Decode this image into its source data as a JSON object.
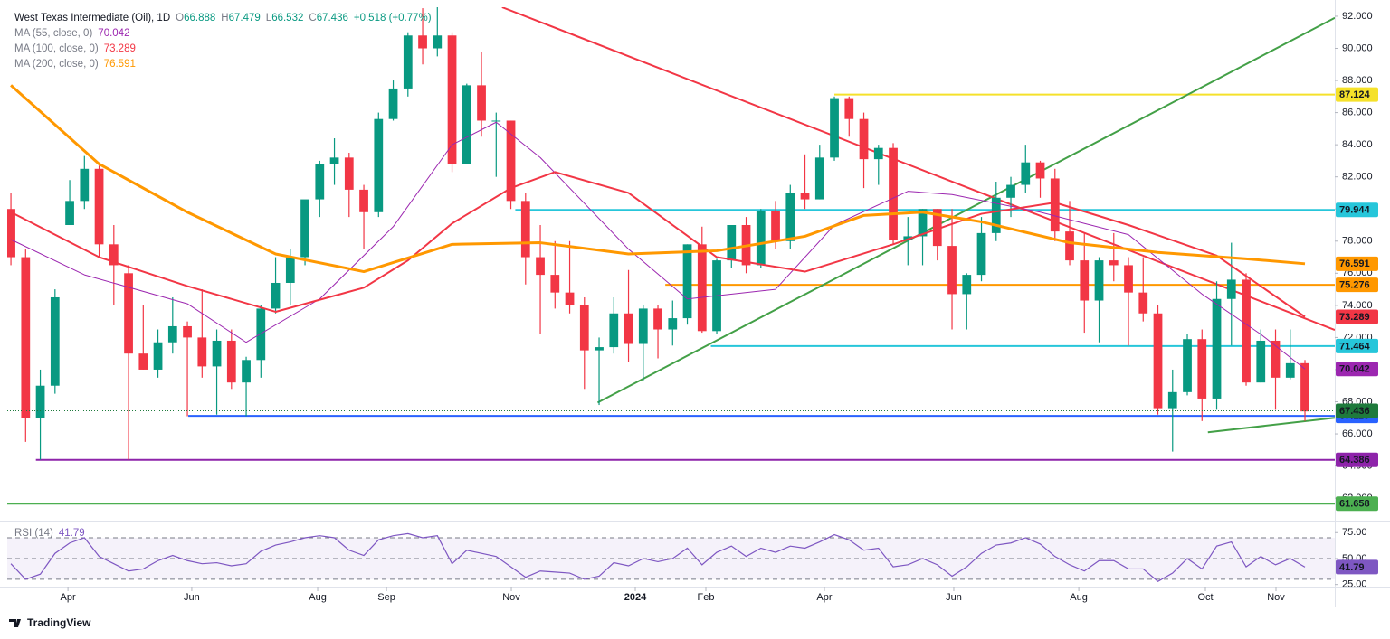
{
  "brand": "TradingView",
  "chart_data": [
    {
      "type": "candlestick",
      "title": "West Texas Intermediate (Oil), 1D",
      "ohlc": [
        {
          "label": "O",
          "value": 66.888
        },
        {
          "label": "H",
          "value": 67.479
        },
        {
          "label": "L",
          "value": 66.532
        },
        {
          "label": "C",
          "value": 67.436
        }
      ],
      "change": "+0.518 (+0.77%)",
      "up_color": "#089981",
      "down_color": "#f23645",
      "xlim": [
        -0.25,
        90.03
      ],
      "xticks": [
        {
          "value": 3.88,
          "label": "Apr"
        },
        {
          "value": 12.3,
          "label": "Jun"
        },
        {
          "value": 20.86,
          "label": "Aug"
        },
        {
          "value": 25.54,
          "label": "Sep"
        },
        {
          "value": 34.03,
          "label": "Nov"
        },
        {
          "value": 42.46,
          "label": "2024",
          "bold": true
        },
        {
          "value": 47.26,
          "label": "Feb"
        },
        {
          "value": 55.32,
          "label": "Apr"
        },
        {
          "value": 64.12,
          "label": "Jun"
        },
        {
          "value": 72.62,
          "label": "Aug"
        },
        {
          "value": 81.23,
          "label": "Oct"
        },
        {
          "value": 86.03,
          "label": "Nov"
        }
      ],
      "ylim": [
        60.77,
        92.56
      ],
      "yticks": [
        {
          "value": 62,
          "label": "62.000"
        },
        {
          "value": 64,
          "label": "64.000"
        },
        {
          "value": 66,
          "label": "66.000"
        },
        {
          "value": 68,
          "label": "68.000"
        },
        {
          "value": 70,
          "label": "70.000"
        },
        {
          "value": 72,
          "label": "72.000"
        },
        {
          "value": 74,
          "label": "74.000"
        },
        {
          "value": 76,
          "label": "76.000"
        },
        {
          "value": 78,
          "label": "78.000"
        },
        {
          "value": 80,
          "label": "80.000"
        },
        {
          "value": 82,
          "label": "82.000"
        },
        {
          "value": 84,
          "label": "84.000"
        },
        {
          "value": 86,
          "label": "86.000"
        },
        {
          "value": 88,
          "label": "88.000"
        },
        {
          "value": 90,
          "label": "90.000"
        },
        {
          "value": 92,
          "label": "92.000"
        }
      ],
      "candles": {
        "open": [
          80,
          77,
          67,
          69,
          79,
          80.5,
          82.5,
          77.8,
          76,
          71,
          70,
          71.7,
          72.7,
          72,
          70.2,
          71.8,
          69.2,
          70.6,
          73.8,
          75.4,
          77,
          80.6,
          82.8,
          83.2,
          81.2,
          79.8,
          85.6,
          87.5,
          90.8,
          90,
          90.8,
          82.8,
          87.7,
          85.5,
          85.5,
          80.5,
          77,
          75.9,
          74.8,
          74,
          71.2,
          71.4,
          73.5,
          71.6,
          73.8,
          72.5,
          73.2,
          77.8,
          72.4,
          76.8,
          79,
          76.5,
          79.9,
          78,
          81,
          80.6,
          83.2,
          86.9,
          85.6,
          83.1,
          83.8,
          78.1,
          78.3,
          80,
          77.7,
          74.7,
          75.9,
          78.5,
          80.7,
          81.5,
          82.9,
          81.9,
          78.6,
          76.8,
          74.3,
          76.8,
          76.5,
          74.8,
          73.5,
          67.6,
          68.6,
          71.9,
          68.2,
          74.4,
          75.6,
          69.2,
          71.8,
          69.5,
          70.4
        ],
        "high": [
          81,
          77.5,
          70,
          75,
          81.8,
          83.3,
          82.7,
          79,
          76.5,
          74,
          72.5,
          74.5,
          73,
          75,
          72.5,
          72.5,
          70.8,
          74,
          77,
          77.5,
          80.5,
          83,
          84.4,
          83.5,
          81.5,
          86,
          88,
          91,
          92.5,
          93.7,
          91,
          87.8,
          89.8,
          86,
          85.5,
          81,
          79,
          78,
          78,
          74.5,
          72,
          74.5,
          76.2,
          74,
          74,
          74.3,
          77.8,
          78.9,
          76.9,
          79,
          79.5,
          80,
          80.5,
          81.5,
          83.4,
          84,
          87,
          87,
          86,
          84,
          84.1,
          79.5,
          80,
          80,
          80,
          76,
          79.5,
          81.7,
          82,
          84,
          83,
          82.5,
          80.5,
          78.5,
          77,
          78.5,
          77,
          77,
          74,
          70,
          72.2,
          72.5,
          75.5,
          77.9,
          76,
          72.5,
          72.5,
          72.5,
          70.6
        ],
        "low": [
          76.5,
          65.5,
          64.4,
          68.5,
          79,
          80,
          77,
          74,
          64.4,
          70,
          69.5,
          71,
          67.1,
          69.5,
          67.2,
          68.8,
          67.1,
          69.5,
          73.5,
          74,
          76.5,
          79.5,
          81.5,
          79.5,
          77.5,
          79.5,
          85.5,
          87,
          89,
          89.5,
          82.3,
          82.8,
          84.5,
          82,
          80,
          75.3,
          72.2,
          73.8,
          73.5,
          68.8,
          67.8,
          71,
          70.5,
          69.3,
          70.7,
          71.5,
          72.8,
          72.3,
          72.2,
          76.3,
          76,
          76.3,
          77.5,
          77.5,
          80,
          80.6,
          83,
          84.5,
          81.3,
          81.5,
          77.8,
          76.5,
          76.5,
          76.8,
          72.5,
          72.5,
          75.5,
          78,
          79.5,
          81,
          80.7,
          78,
          76.5,
          72.3,
          71.7,
          75.5,
          71.5,
          73,
          67.2,
          64.9,
          68.4,
          66.8,
          67.5,
          71.5,
          69,
          69.2,
          67.5,
          69.4,
          66.8
        ],
        "close": [
          77,
          67,
          69,
          74.5,
          80.5,
          82.5,
          77.8,
          76.5,
          71,
          70,
          71.7,
          72.7,
          72,
          70.2,
          71.8,
          69.2,
          70.6,
          73.8,
          75.4,
          77,
          80.6,
          82.8,
          83.2,
          81.2,
          79.8,
          85.6,
          87.5,
          90.8,
          90,
          90.8,
          82.8,
          87.7,
          85.5,
          85.5,
          80.5,
          77,
          75.9,
          74.8,
          74,
          71.2,
          71.4,
          73.5,
          71.6,
          73.8,
          72.5,
          73.2,
          77.8,
          72.4,
          76.8,
          79,
          76.5,
          79.9,
          78,
          81,
          80.6,
          83.2,
          86.9,
          85.6,
          83.1,
          83.8,
          78.1,
          78.3,
          80,
          77.7,
          74.7,
          75.9,
          78.5,
          80.7,
          81.5,
          82.9,
          81.9,
          78.6,
          76.8,
          74.3,
          76.8,
          76.5,
          74.8,
          73.5,
          67.6,
          68.6,
          71.9,
          68.2,
          74.4,
          75.6,
          69.2,
          71.8,
          69.5,
          70.4,
          67.4
        ]
      },
      "moving_averages": [
        {
          "name": "MA (55, close, 0)",
          "color": "#9c27b0",
          "width": 1,
          "last": 70.042,
          "x": [
            0,
            5,
            12,
            16,
            21,
            26,
            30,
            33,
            36,
            42,
            46,
            52,
            56,
            61,
            64,
            70,
            76,
            81,
            85,
            88
          ],
          "values": [
            78.1,
            75.9,
            74.1,
            71.7,
            74.4,
            78.9,
            84,
            85.4,
            83.2,
            77.5,
            74.4,
            75,
            79,
            81.1,
            80.9,
            79.8,
            78.4,
            74.7,
            72.2,
            70.042
          ]
        },
        {
          "name": "MA (100, close, 0)",
          "color": "#f23645",
          "width": 2,
          "last": 73.289,
          "x": [
            0,
            6,
            12,
            18,
            24,
            27,
            30,
            34,
            37,
            42,
            48,
            54,
            60,
            66,
            71,
            76,
            82,
            88
          ],
          "values": [
            79.8,
            77,
            75.2,
            73.6,
            75.1,
            76.8,
            79.1,
            81.3,
            82.3,
            81,
            77,
            76.1,
            77.8,
            79.7,
            80.4,
            79,
            77.1,
            73.289
          ]
        },
        {
          "name": "MA (200, close, 0)",
          "color": "#ff9800",
          "width": 3,
          "last": 76.591,
          "x": [
            0,
            6,
            12,
            18,
            24,
            30,
            36,
            42,
            48,
            54,
            58,
            62,
            66,
            72,
            78,
            84,
            88
          ],
          "values": [
            87.7,
            82.8,
            79.8,
            77.2,
            76.1,
            77.8,
            77.9,
            77.2,
            77.4,
            78.3,
            79.6,
            79.8,
            79.2,
            77.9,
            77.3,
            76.9,
            76.591
          ]
        }
      ],
      "levels": [
        {
          "value": 87.124,
          "color": "#f5e12a",
          "from": 56
        },
        {
          "value": 79.944,
          "color": "#26c6da",
          "from": 34.3
        },
        {
          "value": 75.276,
          "color": "#ff9800",
          "from": 44.5
        },
        {
          "value": 71.464,
          "color": "#26c6da",
          "from": 47.6
        },
        {
          "value": 67.118,
          "color": "#2962ff",
          "from": 12.06
        },
        {
          "value": 64.386,
          "color": "#8e24aa",
          "from": 1.7
        },
        {
          "value": 61.658,
          "color": "#4caf50",
          "from": -0.25
        }
      ],
      "trendlines": [
        {
          "color": "#43a047",
          "x": [
            39.9,
            90.03
          ],
          "values": [
            67.95,
            91.9
          ]
        },
        {
          "color": "#43a047",
          "x": [
            81.4,
            90.03
          ],
          "values": [
            66.1,
            67.0
          ]
        },
        {
          "color": "#f23645",
          "x": [
            33.4,
            90.03
          ],
          "values": [
            92.56,
            72.47
          ]
        }
      ],
      "last_price": 67.436,
      "price_color": "#1e7a3c"
    },
    {
      "type": "line",
      "name": "RSI (14)",
      "color": "#7e57c2",
      "last": 41.79,
      "ylim": [
        22.1,
        84.8
      ],
      "yticks": [
        {
          "value": 75,
          "label": "75.00"
        },
        {
          "value": 50,
          "label": "50.00"
        },
        {
          "value": 25,
          "label": "25.00"
        }
      ],
      "band": [
        30,
        70
      ],
      "levels": [
        70,
        50,
        30
      ],
      "values": [
        45,
        30,
        35,
        55,
        65,
        70,
        52,
        45,
        38,
        40,
        48,
        53,
        48,
        45,
        46,
        43,
        45,
        57,
        63,
        66,
        70,
        72,
        70,
        58,
        53,
        68,
        72,
        74,
        70,
        72,
        45,
        58,
        55,
        52,
        42,
        32,
        38,
        37,
        36,
        30,
        33,
        46,
        43,
        50,
        47,
        50,
        60,
        44,
        56,
        62,
        52,
        60,
        56,
        62,
        60,
        66,
        73,
        68,
        58,
        60,
        42,
        44,
        50,
        44,
        33,
        42,
        55,
        63,
        65,
        70,
        64,
        52,
        44,
        38,
        48,
        48,
        40,
        40,
        28,
        36,
        50,
        40,
        62,
        66,
        42,
        52,
        44,
        50,
        41.79
      ]
    }
  ]
}
